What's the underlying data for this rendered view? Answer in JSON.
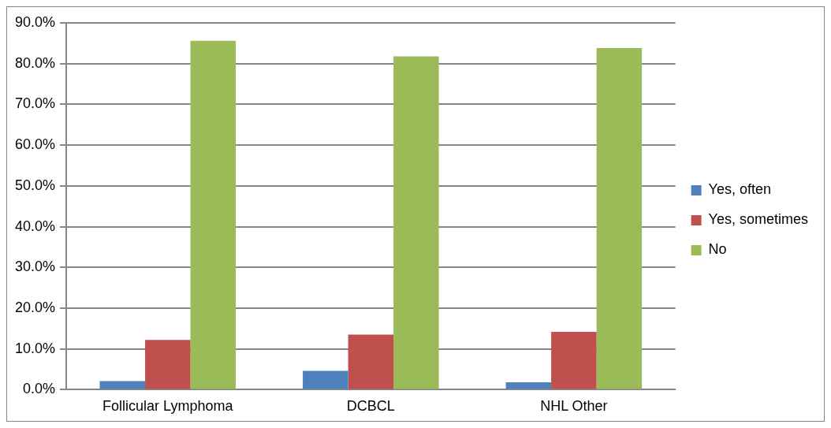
{
  "chart_data": {
    "type": "bar",
    "categories": [
      "Follicular Lymphoma",
      "DCBCL",
      "NHL Other"
    ],
    "series": [
      {
        "name": "Yes, often",
        "color": "#4f81bd",
        "values": [
          2.1,
          4.6,
          1.8
        ]
      },
      {
        "name": "Yes, sometimes",
        "color": "#c0504d",
        "values": [
          12.2,
          13.5,
          14.2
        ]
      },
      {
        "name": "No",
        "color": "#9bbb59",
        "values": [
          85.6,
          81.8,
          83.8
        ]
      }
    ],
    "ylim": [
      0,
      90
    ],
    "yticks": [
      {
        "value": 0,
        "label": "0.0%"
      },
      {
        "value": 10,
        "label": "10.0%"
      },
      {
        "value": 20,
        "label": "20.0%"
      },
      {
        "value": 30,
        "label": "30.0%"
      },
      {
        "value": 40,
        "label": "40.0%"
      },
      {
        "value": 50,
        "label": "50.0%"
      },
      {
        "value": 60,
        "label": "60.0%"
      },
      {
        "value": 70,
        "label": "70.0%"
      },
      {
        "value": 80,
        "label": "80.0%"
      },
      {
        "value": 90,
        "label": "90.0%"
      }
    ],
    "grid": "y",
    "legend": "right"
  }
}
